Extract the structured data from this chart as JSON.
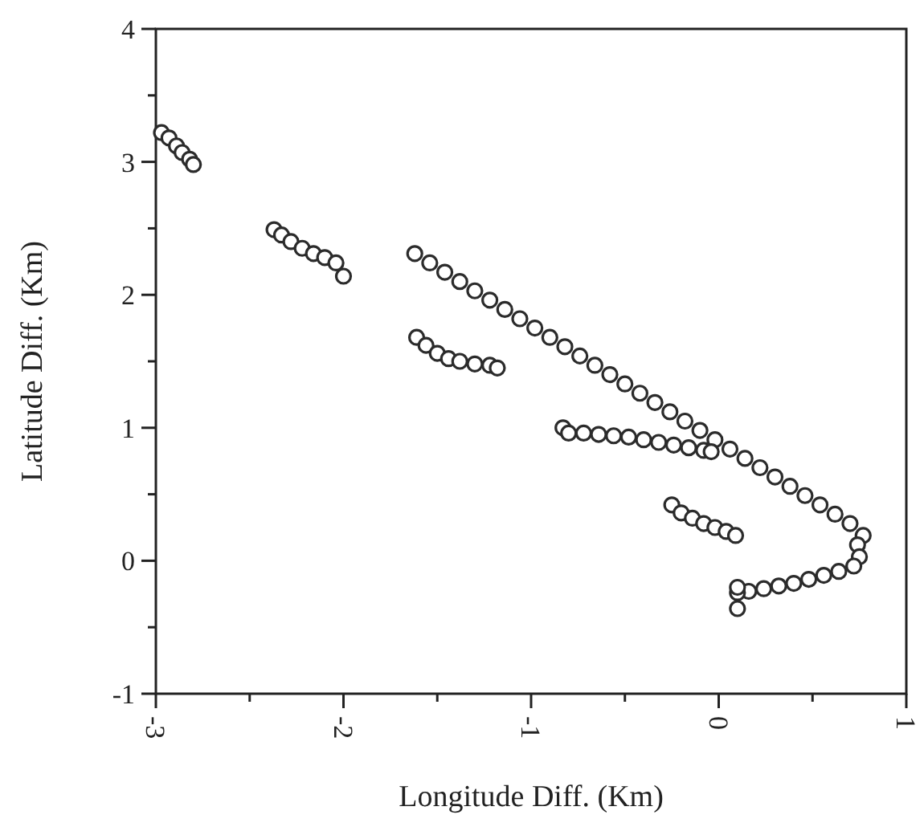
{
  "chart_data": {
    "type": "scatter",
    "xlabel": "Longitude Diff. (Km)",
    "ylabel": "Latitude Diff. (Km)",
    "xlim": [
      -3,
      1
    ],
    "ylim": [
      -1,
      4
    ],
    "xticks": [
      -3,
      {
        "value": -2.5,
        "label": null
      },
      -2,
      {
        "value": -1.5,
        "label": null
      },
      -1,
      {
        "value": -0.5,
        "label": null
      },
      0,
      {
        "value": 0.5,
        "label": null
      },
      1
    ],
    "yticks": [
      -1,
      {
        "value": -0.5,
        "label": null
      },
      0,
      {
        "value": 0.5,
        "label": null
      },
      1,
      {
        "value": 1.5,
        "label": null
      },
      2,
      {
        "value": 2.5,
        "label": null
      },
      3,
      {
        "value": 3.5,
        "label": null
      },
      4
    ],
    "marker": "circle",
    "series": [
      {
        "color": "#2b2b2b",
        "x": [
          -2.97,
          -2.93,
          -2.89,
          -2.86,
          -2.82,
          -2.8,
          -2.37,
          -2.33,
          -2.28,
          -2.22,
          -2.16,
          -2.1,
          -2.04,
          -2.0,
          -1.61,
          -1.56,
          -1.5,
          -1.44,
          -1.38,
          -1.3,
          -1.22,
          -1.18,
          -1.62,
          -1.54,
          -1.46,
          -1.38,
          -1.3,
          -1.22,
          -1.14,
          -1.06,
          -0.98,
          -0.9,
          -0.82,
          -0.74,
          -0.66,
          -0.58,
          -0.5,
          -0.42,
          -0.34,
          -0.26,
          -0.18,
          -0.1,
          -0.02,
          0.06,
          0.14,
          0.22,
          0.3,
          0.38,
          0.46,
          0.54,
          0.62,
          0.7,
          0.77,
          0.74,
          0.75,
          0.72,
          0.64,
          0.56,
          0.48,
          0.4,
          0.32,
          0.24,
          0.16,
          0.1,
          0.1,
          0.1,
          -0.83,
          -0.8,
          -0.72,
          -0.64,
          -0.56,
          -0.48,
          -0.4,
          -0.32,
          -0.24,
          -0.16,
          -0.08,
          -0.04,
          -0.25,
          -0.2,
          -0.14,
          -0.08,
          -0.02,
          0.04,
          0.09
        ],
        "values": [
          3.22,
          3.18,
          3.12,
          3.07,
          3.02,
          2.98,
          2.49,
          2.45,
          2.4,
          2.35,
          2.31,
          2.28,
          2.24,
          2.14,
          1.68,
          1.62,
          1.56,
          1.52,
          1.5,
          1.48,
          1.47,
          1.45,
          2.31,
          2.24,
          2.17,
          2.1,
          2.03,
          1.96,
          1.89,
          1.82,
          1.75,
          1.68,
          1.61,
          1.54,
          1.47,
          1.4,
          1.33,
          1.26,
          1.19,
          1.12,
          1.05,
          0.98,
          0.91,
          0.84,
          0.77,
          0.7,
          0.63,
          0.56,
          0.49,
          0.42,
          0.35,
          0.28,
          0.19,
          0.12,
          0.03,
          -0.04,
          -0.08,
          -0.11,
          -0.14,
          -0.17,
          -0.19,
          -0.21,
          -0.23,
          -0.24,
          -0.2,
          -0.36,
          1.0,
          0.96,
          0.96,
          0.95,
          0.94,
          0.93,
          0.91,
          0.89,
          0.87,
          0.85,
          0.83,
          0.82,
          0.42,
          0.36,
          0.32,
          0.28,
          0.25,
          0.22,
          0.19
        ]
      }
    ]
  }
}
